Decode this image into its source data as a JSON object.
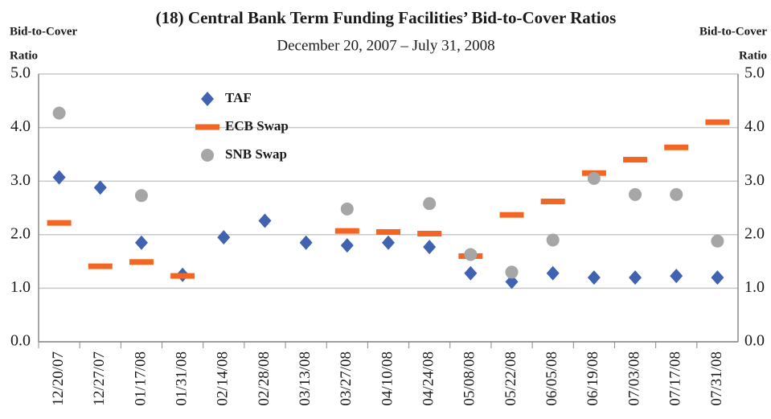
{
  "chart_data": {
    "type": "scatter",
    "title": "(18) Central Bank Term Funding Facilities’ Bid-to-Cover Ratios",
    "subtitle": "December 20, 2007 – July 31, 2008",
    "ylabel": [
      "Bid-to-Cover",
      "Ratio"
    ],
    "y2label": [
      "Bid-to-Cover",
      "Ratio"
    ],
    "categories": [
      "12/20/07",
      "12/27/07",
      "01/17/08",
      "01/31/08",
      "02/14/08",
      "02/28/08",
      "03/13/08",
      "03/27/08",
      "04/10/08",
      "04/24/08",
      "05/08/08",
      "05/22/08",
      "06/05/08",
      "06/19/08",
      "07/03/08",
      "07/17/08",
      "07/31/08"
    ],
    "series": [
      {
        "name": "TAF",
        "color": "#3f63b0",
        "marker": "diamond",
        "values": [
          3.07,
          2.88,
          1.85,
          1.25,
          1.95,
          2.26,
          1.85,
          1.8,
          1.85,
          1.77,
          1.28,
          1.12,
          1.28,
          1.2,
          1.2,
          1.23,
          1.2
        ]
      },
      {
        "name": "ECB Swap",
        "color": "#f26522",
        "marker": "dash",
        "values": [
          2.22,
          1.41,
          1.49,
          1.23,
          null,
          null,
          null,
          2.07,
          2.05,
          2.02,
          1.6,
          2.37,
          2.62,
          3.15,
          3.4,
          3.63,
          4.1
        ]
      },
      {
        "name": "SNB Swap",
        "color": "#a6a6a6",
        "marker": "circle",
        "values": [
          4.27,
          null,
          2.73,
          null,
          null,
          null,
          null,
          2.48,
          null,
          2.58,
          1.63,
          1.3,
          1.9,
          3.05,
          2.75,
          2.75,
          1.88
        ]
      }
    ],
    "ylim": [
      0,
      5
    ],
    "yticks": [
      {
        "value": 0,
        "label": "0.0"
      },
      {
        "value": 1,
        "label": "1.0"
      },
      {
        "value": 2,
        "label": "2.0"
      },
      {
        "value": 3,
        "label": "3.0"
      },
      {
        "value": 4,
        "label": "4.0"
      },
      {
        "value": 5,
        "label": "5.0"
      }
    ],
    "y2lim": [
      0,
      5
    ],
    "y2ticks": [
      {
        "value": 0,
        "label": "0.0"
      },
      {
        "value": 1,
        "label": "1.0"
      },
      {
        "value": 2,
        "label": "2.0"
      },
      {
        "value": 3,
        "label": "3.0"
      },
      {
        "value": 4,
        "label": "4.0"
      },
      {
        "value": 5,
        "label": "5.0"
      }
    ],
    "grid": true,
    "legend": "upper-left"
  }
}
